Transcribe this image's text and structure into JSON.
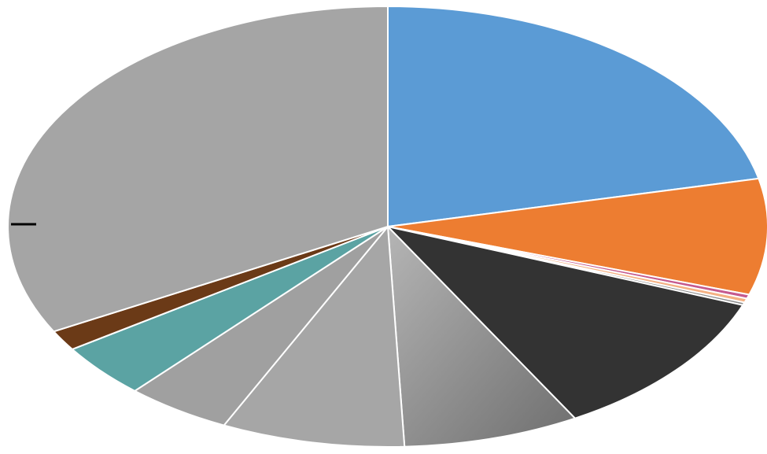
{
  "chart_data": {
    "type": "pie",
    "title": "",
    "legend": "none",
    "start_angle_deg": -90,
    "direction": "clockwise",
    "slices": [
      {
        "value": 21.5,
        "color": "#5B9BD5"
      },
      {
        "value": 8.5,
        "color": "#ED7D31"
      },
      {
        "value": 0.3,
        "color": "#C55A8E"
      },
      {
        "value": 0.3,
        "color": "#F4B183"
      },
      {
        "value": 0.2,
        "color": "#8C8C8C"
      },
      {
        "value": 11.0,
        "color": "#333333"
      },
      {
        "value": 7.5,
        "color": "#8A8A8A"
      },
      {
        "value": 7.8,
        "color": "#A6A6A6"
      },
      {
        "value": 4.5,
        "color": "#A0A0A0"
      },
      {
        "value": 4.0,
        "color": "#5BA3A3"
      },
      {
        "value": 1.5,
        "color": "#6B3A17"
      },
      {
        "value": 32.9,
        "color": "#A5A5A5"
      }
    ]
  }
}
